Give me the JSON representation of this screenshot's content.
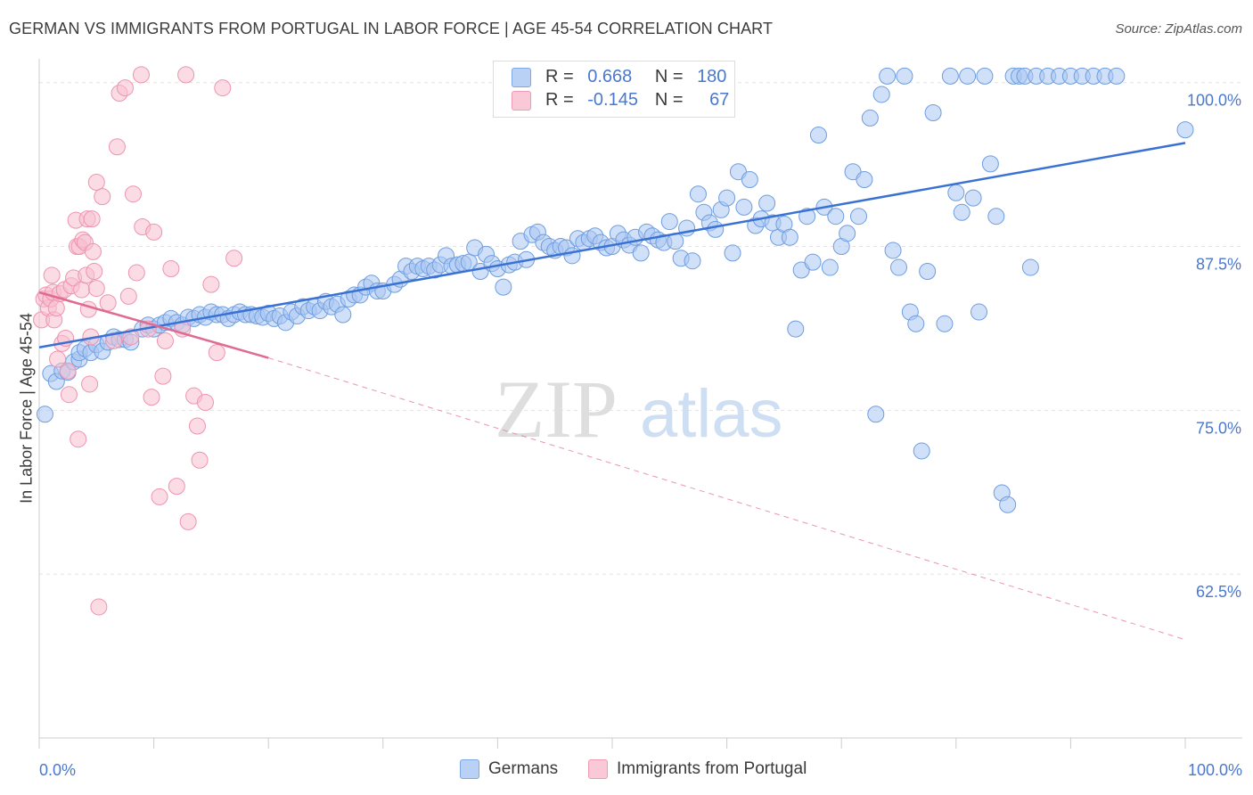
{
  "header": {
    "title": "GERMAN VS IMMIGRANTS FROM PORTUGAL IN LABOR FORCE | AGE 45-54 CORRELATION CHART",
    "source": "Source: ZipAtlas.com"
  },
  "watermark": {
    "zip": "ZIP",
    "atlas": "atlas"
  },
  "legend_stats": [
    {
      "r_label": "R =",
      "r_value": "0.668",
      "n_label": "N =",
      "n_value": "180",
      "color": "#8ab4f0"
    },
    {
      "r_label": "R =",
      "r_value": "-0.145",
      "n_label": "N =",
      "n_value": "67",
      "color": "#f5b0c5"
    }
  ],
  "bottom_legend": [
    {
      "label": "Germans",
      "color": "#8ab4f0"
    },
    {
      "label": "Immigrants from Portugal",
      "color": "#f5b0c5"
    }
  ],
  "colors": {
    "blue_fill": "#a9c7f2",
    "blue_stroke": "#6e9de0",
    "blue_line": "#3a72d4",
    "pink_fill": "#f7bfd0",
    "pink_stroke": "#ee93b1",
    "pink_line": "#e06a92",
    "tick_label": "#4a78cf",
    "grid": "#e2e2e2"
  },
  "chart_data": {
    "type": "scatter",
    "title": "GERMAN VS IMMIGRANTS FROM PORTUGAL IN LABOR FORCE | AGE 45-54 CORRELATION CHART",
    "xlabel": "",
    "ylabel": "In Labor Force | Age 45-54",
    "xlim": [
      0,
      100
    ],
    "ylim": [
      50,
      101
    ],
    "x_tick_labels": [
      "0.0%",
      "100.0%"
    ],
    "y_ticks": [
      62.5,
      75.0,
      87.5,
      100.0
    ],
    "y_tick_labels": [
      "62.5%",
      "75.0%",
      "87.5%",
      "100.0%"
    ],
    "grid": true,
    "legend_position": "top-center",
    "series": [
      {
        "name": "Germans",
        "r": 0.668,
        "n": 180,
        "trend": {
          "x": [
            0,
            100
          ],
          "y": [
            79.8,
            95.4
          ]
        },
        "points": [
          [
            0.5,
            74.7
          ],
          [
            1,
            77.8
          ],
          [
            1.5,
            77.2
          ],
          [
            2,
            78
          ],
          [
            2.5,
            77.9
          ],
          [
            3,
            78.7
          ],
          [
            3.5,
            78.9
          ],
          [
            3.5,
            79.4
          ],
          [
            4,
            79.7
          ],
          [
            4.5,
            79.4
          ],
          [
            5,
            80
          ],
          [
            5.5,
            79.5
          ],
          [
            6,
            80.2
          ],
          [
            6.5,
            80.6
          ],
          [
            7,
            80.4
          ],
          [
            7.5,
            80.4
          ],
          [
            8,
            80.2
          ],
          [
            9,
            81.2
          ],
          [
            9.5,
            81.5
          ],
          [
            10,
            81.2
          ],
          [
            10.5,
            81.5
          ],
          [
            11,
            81.7
          ],
          [
            11.5,
            82
          ],
          [
            12,
            81.7
          ],
          [
            12.5,
            81.5
          ],
          [
            13,
            82.1
          ],
          [
            13.5,
            82
          ],
          [
            14,
            82.3
          ],
          [
            14.5,
            82.1
          ],
          [
            15,
            82.5
          ],
          [
            15.5,
            82.3
          ],
          [
            16,
            82.3
          ],
          [
            16.5,
            82
          ],
          [
            17,
            82.3
          ],
          [
            17.5,
            82.5
          ],
          [
            18,
            82.3
          ],
          [
            18.5,
            82.3
          ],
          [
            19,
            82.2
          ],
          [
            19.5,
            82.1
          ],
          [
            20,
            82.4
          ],
          [
            20.5,
            82
          ],
          [
            21,
            82.2
          ],
          [
            21.5,
            81.7
          ],
          [
            22,
            82.5
          ],
          [
            22.5,
            82.2
          ],
          [
            23,
            82.9
          ],
          [
            23.5,
            82.6
          ],
          [
            24,
            82.9
          ],
          [
            24.5,
            82.6
          ],
          [
            25,
            83.3
          ],
          [
            25.5,
            82.9
          ],
          [
            26,
            83.1
          ],
          [
            26.5,
            82.3
          ],
          [
            27,
            83.5
          ],
          [
            27.5,
            83.8
          ],
          [
            28,
            83.8
          ],
          [
            28.5,
            84.4
          ],
          [
            29,
            84.7
          ],
          [
            29.5,
            84.1
          ],
          [
            30,
            84.1
          ],
          [
            31,
            84.6
          ],
          [
            31.5,
            85
          ],
          [
            32,
            86
          ],
          [
            32.5,
            85.6
          ],
          [
            33,
            86
          ],
          [
            33.5,
            85.8
          ],
          [
            34,
            86
          ],
          [
            34.5,
            85.7
          ],
          [
            35,
            86.1
          ],
          [
            35.5,
            86.8
          ],
          [
            36,
            86
          ],
          [
            36.5,
            86.1
          ],
          [
            37,
            86.2
          ],
          [
            37.5,
            86.3
          ],
          [
            38,
            87.4
          ],
          [
            38.5,
            85.6
          ],
          [
            39,
            86.9
          ],
          [
            39.5,
            86.2
          ],
          [
            40,
            85.8
          ],
          [
            40.5,
            84.4
          ],
          [
            41,
            86.1
          ],
          [
            41.5,
            86.3
          ],
          [
            42,
            87.9
          ],
          [
            42.5,
            86.5
          ],
          [
            43,
            88.4
          ],
          [
            43.5,
            88.6
          ],
          [
            44,
            87.8
          ],
          [
            44.5,
            87.5
          ],
          [
            45,
            87.2
          ],
          [
            45.5,
            87.5
          ],
          [
            46,
            87.4
          ],
          [
            46.5,
            86.8
          ],
          [
            47,
            88.1
          ],
          [
            47.5,
            87.8
          ],
          [
            48,
            88.1
          ],
          [
            48.5,
            88.3
          ],
          [
            49,
            87.8
          ],
          [
            49.5,
            87.4
          ],
          [
            50,
            87.5
          ],
          [
            50.5,
            88.5
          ],
          [
            51,
            88
          ],
          [
            51.5,
            87.6
          ],
          [
            52,
            88.2
          ],
          [
            52.5,
            87
          ],
          [
            53,
            88.6
          ],
          [
            53.5,
            88.3
          ],
          [
            54,
            88
          ],
          [
            54.5,
            87.8
          ],
          [
            55,
            89.4
          ],
          [
            55.5,
            87.9
          ],
          [
            56,
            86.6
          ],
          [
            56.5,
            88.9
          ],
          [
            57,
            86.4
          ],
          [
            57.5,
            91.5
          ],
          [
            58,
            90.1
          ],
          [
            58.5,
            89.3
          ],
          [
            59,
            88.8
          ],
          [
            59.5,
            90.3
          ],
          [
            60,
            91.2
          ],
          [
            60.5,
            87
          ],
          [
            61,
            93.2
          ],
          [
            61.5,
            90.5
          ],
          [
            62,
            92.6
          ],
          [
            62.5,
            89.1
          ],
          [
            63,
            89.6
          ],
          [
            63.5,
            90.8
          ],
          [
            64,
            89.3
          ],
          [
            64.5,
            88.2
          ],
          [
            65,
            89.2
          ],
          [
            65.5,
            88.2
          ],
          [
            66,
            81.2
          ],
          [
            66.5,
            85.7
          ],
          [
            67,
            89.8
          ],
          [
            67.5,
            86.3
          ],
          [
            68,
            96
          ],
          [
            68.5,
            90.5
          ],
          [
            69,
            85.9
          ],
          [
            69.5,
            89.8
          ],
          [
            70,
            87.5
          ],
          [
            70.5,
            88.5
          ],
          [
            71,
            93.2
          ],
          [
            71.5,
            89.8
          ],
          [
            72,
            92.6
          ],
          [
            72.5,
            97.3
          ],
          [
            73,
            74.7
          ],
          [
            73.5,
            99.1
          ],
          [
            74,
            100.5
          ],
          [
            74.5,
            87.2
          ],
          [
            75,
            85.9
          ],
          [
            75.5,
            100.5
          ],
          [
            76,
            82.5
          ],
          [
            76.5,
            81.6
          ],
          [
            77,
            71.9
          ],
          [
            77.5,
            85.6
          ],
          [
            78,
            97.7
          ],
          [
            79,
            81.6
          ],
          [
            79.5,
            100.5
          ],
          [
            80,
            91.6
          ],
          [
            80.5,
            90.1
          ],
          [
            81,
            100.5
          ],
          [
            81.5,
            91.2
          ],
          [
            82,
            82.5
          ],
          [
            82.5,
            100.5
          ],
          [
            83,
            93.8
          ],
          [
            83.5,
            89.8
          ],
          [
            84,
            68.7
          ],
          [
            84.5,
            67.8
          ],
          [
            85,
            100.5
          ],
          [
            85.5,
            100.5
          ],
          [
            86,
            100.5
          ],
          [
            86.5,
            85.9
          ],
          [
            87,
            100.5
          ],
          [
            88,
            100.5
          ],
          [
            89,
            100.5
          ],
          [
            90,
            100.5
          ],
          [
            91,
            100.5
          ],
          [
            92,
            100.5
          ],
          [
            93,
            100.5
          ],
          [
            94,
            100.5
          ],
          [
            100,
            96.4
          ]
        ]
      },
      {
        "name": "Immigrants from Portugal",
        "r": -0.145,
        "n": 67,
        "trend": {
          "x": [
            0,
            20,
            100
          ],
          "y": [
            84,
            79,
            57.5
          ]
        },
        "points": [
          [
            0.2,
            81.9
          ],
          [
            0.4,
            83.5
          ],
          [
            0.6,
            83.8
          ],
          [
            0.8,
            82.8
          ],
          [
            1,
            83.5
          ],
          [
            1.1,
            85.3
          ],
          [
            1.2,
            84
          ],
          [
            1.3,
            81.9
          ],
          [
            1.5,
            82.8
          ],
          [
            1.6,
            78.9
          ],
          [
            1.8,
            83.9
          ],
          [
            2,
            80.1
          ],
          [
            2.2,
            84.2
          ],
          [
            2.3,
            80.5
          ],
          [
            2.5,
            78
          ],
          [
            2.6,
            76.2
          ],
          [
            2.8,
            84.5
          ],
          [
            3,
            85.1
          ],
          [
            3.2,
            89.5
          ],
          [
            3.3,
            87.5
          ],
          [
            3.4,
            72.8
          ],
          [
            3.5,
            87.5
          ],
          [
            3.7,
            84.2
          ],
          [
            3.8,
            88
          ],
          [
            4,
            87.8
          ],
          [
            4.1,
            85.3
          ],
          [
            4.2,
            89.6
          ],
          [
            4.3,
            82.7
          ],
          [
            4.4,
            77
          ],
          [
            4.5,
            80.6
          ],
          [
            4.6,
            89.6
          ],
          [
            4.7,
            87.1
          ],
          [
            4.8,
            85.6
          ],
          [
            5,
            84.3
          ],
          [
            5,
            92.4
          ],
          [
            5.2,
            60
          ],
          [
            5.5,
            91.3
          ],
          [
            6,
            83.2
          ],
          [
            6.5,
            80.3
          ],
          [
            6.8,
            95.1
          ],
          [
            7,
            99.2
          ],
          [
            7.5,
            99.6
          ],
          [
            7.8,
            83.7
          ],
          [
            8,
            80.6
          ],
          [
            8.2,
            91.5
          ],
          [
            8.5,
            85.5
          ],
          [
            9,
            89
          ],
          [
            9.5,
            81.2
          ],
          [
            9.8,
            76
          ],
          [
            10,
            88.6
          ],
          [
            10.5,
            68.4
          ],
          [
            10.8,
            77.6
          ],
          [
            11,
            80.3
          ],
          [
            11.5,
            85.8
          ],
          [
            12,
            69.2
          ],
          [
            12.5,
            81.2
          ],
          [
            13,
            66.5
          ],
          [
            13.5,
            76.1
          ],
          [
            13.8,
            73.8
          ],
          [
            14,
            71.2
          ],
          [
            14.5,
            75.6
          ],
          [
            15,
            84.6
          ],
          [
            15.5,
            79.4
          ],
          [
            16,
            99.6
          ],
          [
            17,
            86.6
          ],
          [
            8.9,
            101
          ],
          [
            12.8,
            101
          ]
        ]
      }
    ]
  }
}
